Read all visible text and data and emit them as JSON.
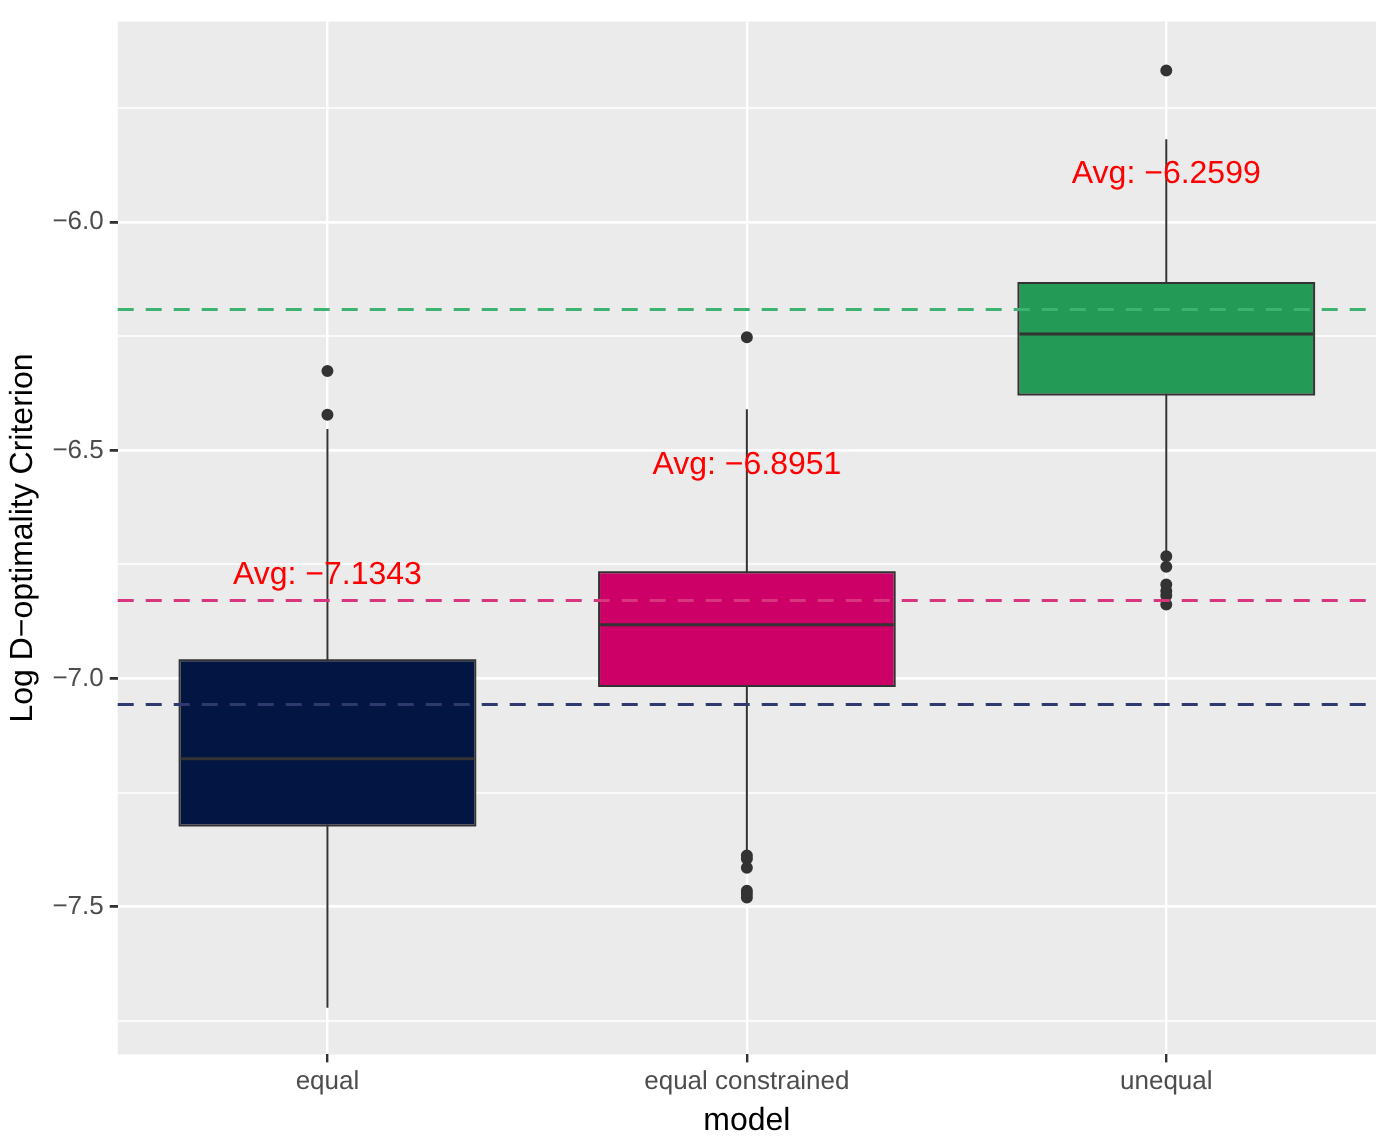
{
  "chart_data": {
    "type": "box",
    "xlabel": "model",
    "ylabel": "Log D−optimality Criterion",
    "categories": [
      "equal",
      "equal constrained",
      "unequal"
    ],
    "colors": [
      "#031542",
      "#cc0066",
      "#239b56"
    ],
    "boxes": [
      {
        "low": -7.722,
        "q1": -7.32,
        "median": -7.176,
        "q3": -6.962,
        "high": -6.453,
        "outliers": [
          -6.326,
          -6.422
        ]
      },
      {
        "low": -7.381,
        "q1": -7.014,
        "median": -6.882,
        "q3": -6.769,
        "high": -6.41,
        "outliers": [
          -6.252,
          -7.388,
          -7.395,
          -7.415,
          -7.465,
          -7.472,
          -7.48
        ]
      },
      {
        "low": -6.723,
        "q1": -6.375,
        "median": -6.245,
        "q3": -6.135,
        "high": -5.818,
        "outliers": [
          -5.667,
          -6.732,
          -6.755,
          -6.794,
          -6.808,
          -6.818,
          -6.838
        ]
      }
    ],
    "ylim": [
      -7.824,
      -5.56
    ],
    "yticks": [
      {
        "value": -7.75,
        "label": null
      },
      {
        "value": -7.5,
        "label": "−7.5"
      },
      {
        "value": -7.25,
        "label": null
      },
      {
        "value": -7,
        "label": "−7.0"
      },
      {
        "value": -6.75,
        "label": null
      },
      {
        "value": -6.5,
        "label": "−6.5"
      },
      {
        "value": -6.25,
        "label": null
      },
      {
        "value": -6,
        "label": "−6.0"
      },
      {
        "value": -5.75,
        "label": null
      }
    ],
    "grid": true,
    "legend": false,
    "ref_lines": [
      {
        "axis": "y",
        "value": -6.191,
        "color": "#3cb371",
        "line_style": "dashed"
      },
      {
        "axis": "y",
        "value": -6.829,
        "color": "#d9347e",
        "line_style": "dashed"
      },
      {
        "axis": "y",
        "value": -7.057,
        "color": "#2e3a6e",
        "line_style": "dashed"
      }
    ],
    "annotations": [
      {
        "text": "Avg: −7.1343",
        "x": "equal",
        "y": -6.774
      },
      {
        "text": "Avg: −6.8951",
        "x": "equal constrained",
        "y": -6.532
      },
      {
        "text": "Avg: −6.2599",
        "x": "unequal",
        "y": -5.895
      }
    ]
  }
}
